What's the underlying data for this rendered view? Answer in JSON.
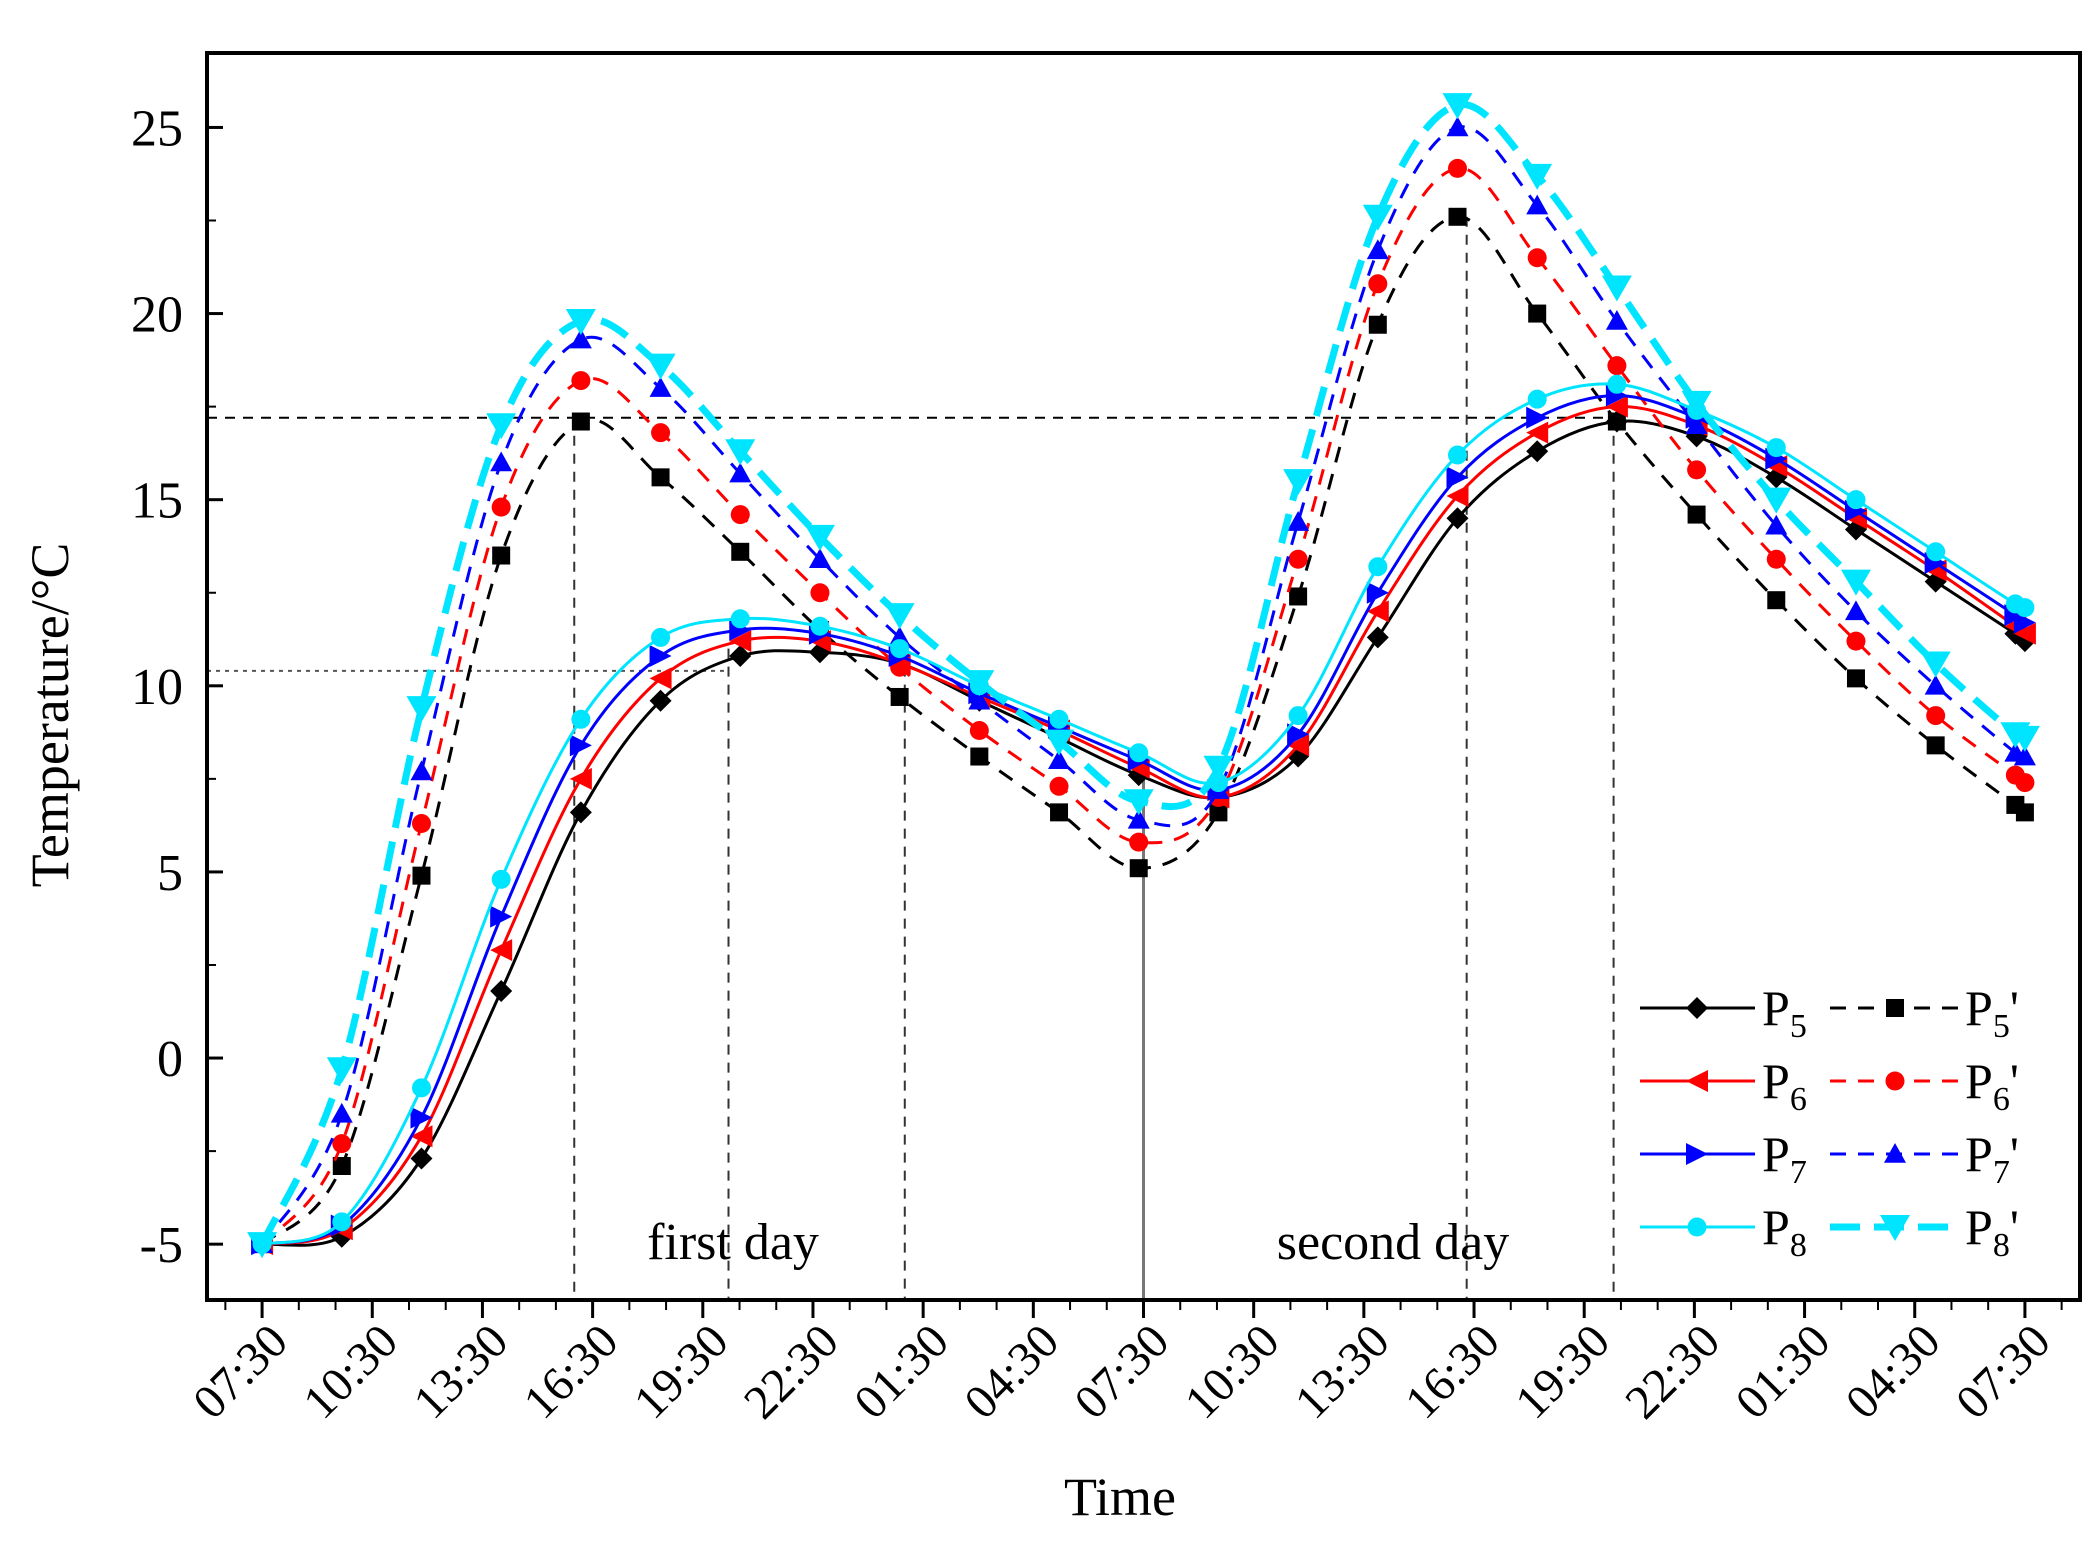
{
  "chart_data": {
    "type": "line",
    "title": "",
    "xlabel": "Time",
    "ylabel": "Temperature/°C",
    "ylim": [
      -6.5,
      27
    ],
    "xlim_hours": [
      -1.5,
      49.5
    ],
    "yticks": [
      -5,
      0,
      5,
      10,
      15,
      20,
      25
    ],
    "xtick_hours": [
      0,
      3,
      6,
      9,
      12,
      15,
      18,
      21,
      24,
      27,
      30,
      33,
      36,
      39,
      42,
      45,
      48
    ],
    "xtick_labels": [
      "07:30",
      "10:30",
      "13:30",
      "16:30",
      "19:30",
      "22:30",
      "01:30",
      "04:30",
      "07:30",
      "10:30",
      "13:30",
      "16:30",
      "19:30",
      "22:30",
      "01:30",
      "04:30",
      "07:30"
    ],
    "annotations": {
      "day1": "first day",
      "day2": "second day"
    },
    "reference_lines": {
      "horizontal_y": [
        17.2,
        10.4
      ],
      "vertical_hours": [
        8.5,
        12.7,
        17.5,
        24.0,
        32.8,
        36.8
      ]
    },
    "series": [
      {
        "name": "P5",
        "label_main": "P",
        "label_sub": "5",
        "label_prime": "",
        "color": "#000000",
        "dash": "solid",
        "marker": "diamond",
        "x": [
          0,
          2.17,
          4.34,
          6.51,
          8.68,
          10.85,
          13.02,
          15.19,
          17.36,
          19.53,
          21.7,
          23.87,
          26.04,
          28.21,
          30.38,
          32.55,
          34.72,
          36.89,
          39.06,
          41.23,
          43.4,
          45.57,
          47.74,
          48
        ],
        "values": [
          -5.0,
          -4.8,
          -2.7,
          1.8,
          6.6,
          9.6,
          10.8,
          10.9,
          10.6,
          9.6,
          8.6,
          7.6,
          7.0,
          8.1,
          11.3,
          14.5,
          16.3,
          17.1,
          16.7,
          15.6,
          14.2,
          12.8,
          11.4,
          11.2
        ]
      },
      {
        "name": "P5'",
        "label_main": "P",
        "label_sub": "5",
        "label_prime": "'",
        "color": "#000000",
        "dash": "dash",
        "marker": "square",
        "x": [
          0,
          2.17,
          4.34,
          6.51,
          8.68,
          10.85,
          13.02,
          15.19,
          17.36,
          19.53,
          21.7,
          23.87,
          26.04,
          28.21,
          30.38,
          32.55,
          34.72,
          36.89,
          39.06,
          41.23,
          43.4,
          45.57,
          47.74,
          48
        ],
        "values": [
          -5.0,
          -2.9,
          4.9,
          13.5,
          17.1,
          15.6,
          13.6,
          11.5,
          9.7,
          8.1,
          6.6,
          5.1,
          6.6,
          12.4,
          19.7,
          22.6,
          20.0,
          17.1,
          14.6,
          12.3,
          10.2,
          8.4,
          6.8,
          6.6
        ]
      },
      {
        "name": "P6",
        "label_main": "P",
        "label_sub": "6",
        "label_prime": "",
        "color": "#ff0000",
        "dash": "solid",
        "marker": "triangle-left",
        "x": [
          0,
          2.17,
          4.34,
          6.51,
          8.68,
          10.85,
          13.02,
          15.19,
          17.36,
          19.53,
          21.7,
          23.87,
          26.04,
          28.21,
          30.38,
          32.55,
          34.72,
          36.89,
          39.06,
          41.23,
          43.4,
          45.57,
          47.74,
          48
        ],
        "values": [
          -5.0,
          -4.6,
          -2.1,
          2.9,
          7.5,
          10.2,
          11.2,
          11.2,
          10.6,
          9.7,
          8.8,
          7.8,
          7.0,
          8.4,
          12.0,
          15.1,
          16.8,
          17.5,
          17.0,
          15.9,
          14.5,
          13.1,
          11.6,
          11.4
        ]
      },
      {
        "name": "P6'",
        "label_main": "P",
        "label_sub": "6",
        "label_prime": "'",
        "color": "#ff0000",
        "dash": "dash",
        "marker": "circle",
        "x": [
          0,
          2.17,
          4.34,
          6.51,
          8.68,
          10.85,
          13.02,
          15.19,
          17.36,
          19.53,
          21.7,
          23.87,
          26.04,
          28.21,
          30.38,
          32.55,
          34.72,
          36.89,
          39.06,
          41.23,
          43.4,
          45.57,
          47.74,
          48
        ],
        "values": [
          -5.0,
          -2.3,
          6.3,
          14.8,
          18.2,
          16.8,
          14.6,
          12.5,
          10.5,
          8.8,
          7.3,
          5.8,
          7.0,
          13.4,
          20.8,
          23.9,
          21.5,
          18.6,
          15.8,
          13.4,
          11.2,
          9.2,
          7.6,
          7.4
        ]
      },
      {
        "name": "P7",
        "label_main": "P",
        "label_sub": "7",
        "label_prime": "",
        "color": "#0000ff",
        "dash": "solid",
        "marker": "triangle-right",
        "x": [
          0,
          2.17,
          4.34,
          6.51,
          8.68,
          10.85,
          13.02,
          15.19,
          17.36,
          19.53,
          21.7,
          23.87,
          26.04,
          28.21,
          30.38,
          32.55,
          34.72,
          36.89,
          39.06,
          41.23,
          43.4,
          45.57,
          47.74,
          48
        ],
        "values": [
          -5.0,
          -4.5,
          -1.6,
          3.8,
          8.4,
          10.8,
          11.5,
          11.4,
          10.8,
          9.8,
          8.9,
          8.0,
          7.2,
          8.7,
          12.5,
          15.6,
          17.2,
          17.8,
          17.2,
          16.1,
          14.7,
          13.3,
          11.9,
          11.7
        ]
      },
      {
        "name": "P7'",
        "label_main": "P",
        "label_sub": "7",
        "label_prime": "'",
        "color": "#0000ff",
        "dash": "dash",
        "marker": "triangle-up",
        "x": [
          0,
          2.17,
          4.34,
          6.51,
          8.68,
          10.85,
          13.02,
          15.19,
          17.36,
          19.53,
          21.7,
          23.87,
          26.04,
          28.21,
          30.38,
          32.55,
          34.72,
          36.89,
          39.06,
          41.23,
          43.4,
          45.57,
          47.74,
          48
        ],
        "values": [
          -5.0,
          -1.5,
          7.7,
          16.0,
          19.3,
          18.0,
          15.7,
          13.4,
          11.3,
          9.6,
          8.0,
          6.4,
          7.2,
          14.4,
          21.7,
          25.0,
          22.9,
          19.8,
          17.0,
          14.3,
          12.0,
          10.0,
          8.2,
          8.1
        ]
      },
      {
        "name": "P8",
        "label_main": "P",
        "label_sub": "8",
        "label_prime": "",
        "color": "#00e5ff",
        "dash": "solid",
        "marker": "circle",
        "x": [
          0,
          2.17,
          4.34,
          6.51,
          8.68,
          10.85,
          13.02,
          15.19,
          17.36,
          19.53,
          21.7,
          23.87,
          26.04,
          28.21,
          30.38,
          32.55,
          34.72,
          36.89,
          39.06,
          41.23,
          43.4,
          45.57,
          47.74,
          48
        ],
        "values": [
          -5.0,
          -4.4,
          -0.8,
          4.8,
          9.1,
          11.3,
          11.8,
          11.6,
          11.0,
          10.0,
          9.1,
          8.2,
          7.4,
          9.2,
          13.2,
          16.2,
          17.7,
          18.1,
          17.4,
          16.4,
          15.0,
          13.6,
          12.2,
          12.1
        ]
      },
      {
        "name": "P8'",
        "label_main": "P",
        "label_sub": "8",
        "label_prime": "'",
        "color": "#00e5ff",
        "dash": "longdash",
        "marker": "triangle-down",
        "x": [
          0,
          2.17,
          4.34,
          6.51,
          8.68,
          10.85,
          13.02,
          15.19,
          17.36,
          19.53,
          21.7,
          23.87,
          26.04,
          28.21,
          30.38,
          32.55,
          34.72,
          36.89,
          39.06,
          41.23,
          43.4,
          45.57,
          47.74,
          48
        ],
        "values": [
          -5.0,
          -0.3,
          9.4,
          17.0,
          19.8,
          18.6,
          16.3,
          14.0,
          11.9,
          10.1,
          8.5,
          6.9,
          7.8,
          15.5,
          22.6,
          25.6,
          23.7,
          20.7,
          17.6,
          15.0,
          12.8,
          10.6,
          8.7,
          8.6
        ]
      }
    ]
  }
}
